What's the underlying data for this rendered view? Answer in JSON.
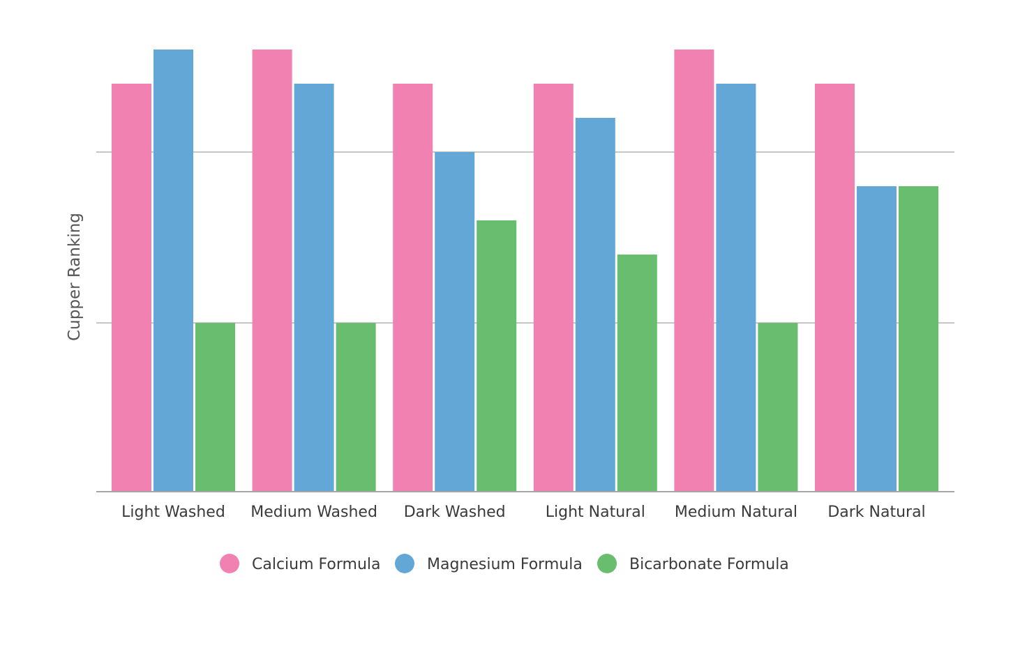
{
  "chart_data": {
    "type": "bar",
    "title": "",
    "xlabel": "",
    "ylabel": "Cupper Ranking",
    "ylim": [
      0,
      4
    ],
    "gridlines": [
      2,
      3
    ],
    "show_y_tick_labels": false,
    "legend_position": "bottom-center",
    "categories": [
      "Light Washed",
      "Medium Washed",
      "Dark Washed",
      "Light Natural",
      "Medium Natural",
      "Dark Natural"
    ],
    "series": [
      {
        "name": "Calcium Formula",
        "color": "#f081b0",
        "values": [
          3.4,
          3.6,
          3.4,
          3.4,
          3.6,
          3.4
        ]
      },
      {
        "name": "Magnesium Formula",
        "color": "#63a7d6",
        "values": [
          3.6,
          3.4,
          3.0,
          3.2,
          3.4,
          2.8
        ]
      },
      {
        "name": "Bicarbonate Formula",
        "color": "#69bd6e",
        "values": [
          2.0,
          2.0,
          2.6,
          2.4,
          2.0,
          2.8
        ]
      }
    ]
  }
}
